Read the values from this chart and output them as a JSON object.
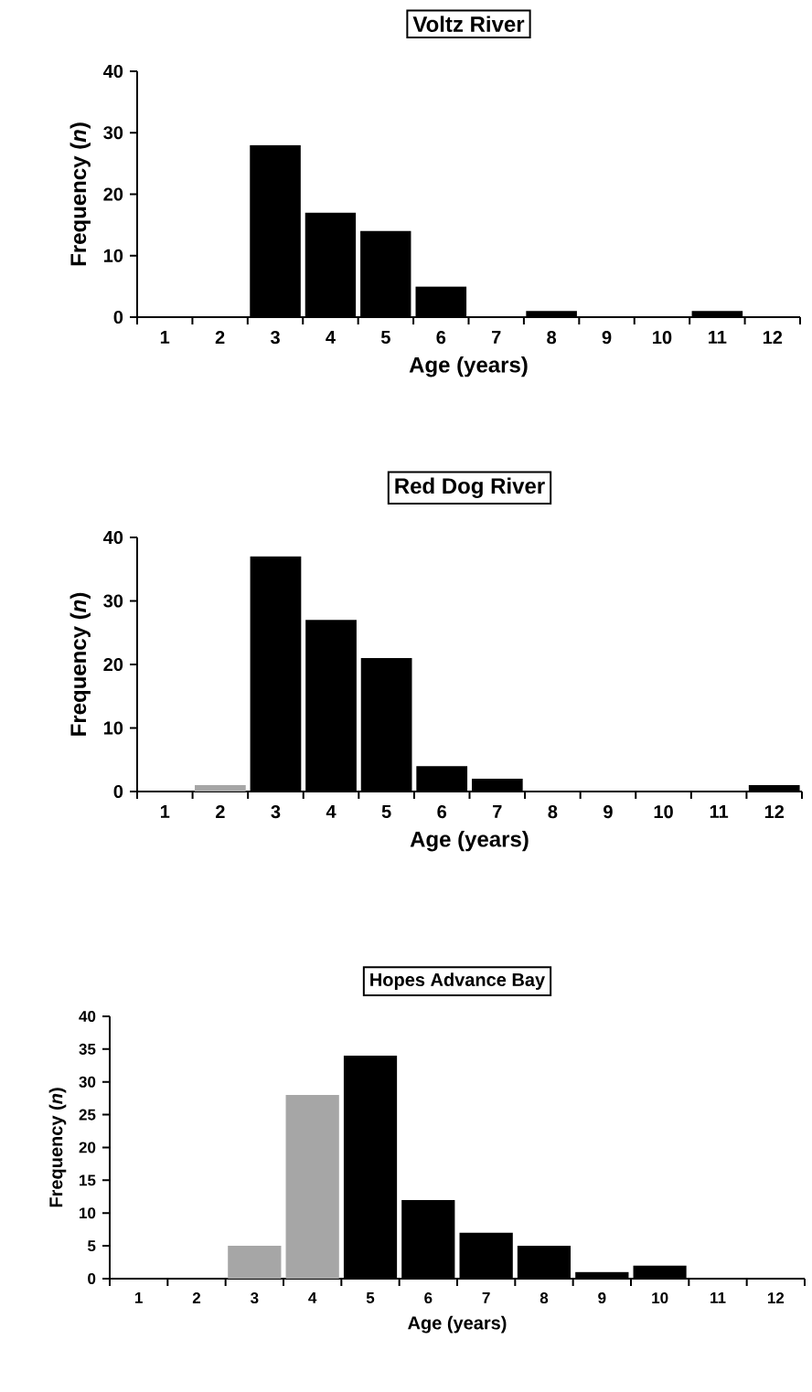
{
  "chart_data": [
    {
      "type": "bar",
      "title": "Voltz River",
      "xlabel": "Age (years)",
      "ylabel": "Frequency (*n*)",
      "categories": [
        "1",
        "2",
        "3",
        "4",
        "5",
        "6",
        "7",
        "8",
        "9",
        "10",
        "11",
        "12"
      ],
      "values": [
        0,
        0,
        28,
        17,
        14,
        5,
        0,
        1,
        0,
        0,
        1,
        0
      ],
      "colors": [
        "#000000",
        "#000000",
        "#000000",
        "#000000",
        "#000000",
        "#000000",
        "#000000",
        "#000000",
        "#000000",
        "#000000",
        "#000000",
        "#000000"
      ],
      "ylim": [
        0,
        40
      ],
      "yticks": [
        0,
        10,
        20,
        30,
        40
      ]
    },
    {
      "type": "bar",
      "title": "Red Dog River",
      "xlabel": "Age (years)",
      "ylabel": "Frequency (*n*)",
      "categories": [
        "1",
        "2",
        "3",
        "4",
        "5",
        "6",
        "7",
        "8",
        "9",
        "10",
        "11",
        "12"
      ],
      "values": [
        0,
        1,
        37,
        27,
        21,
        4,
        2,
        0,
        0,
        0,
        0,
        1
      ],
      "colors": [
        "#000000",
        "#a6a6a6",
        "#000000",
        "#000000",
        "#000000",
        "#000000",
        "#000000",
        "#000000",
        "#000000",
        "#000000",
        "#000000",
        "#000000"
      ],
      "ylim": [
        0,
        40
      ],
      "yticks": [
        0,
        10,
        20,
        30,
        40
      ]
    },
    {
      "type": "bar",
      "title": "Hopes Advance Bay",
      "xlabel": "Age (years)",
      "ylabel": "Frequency (*n*)",
      "categories": [
        "1",
        "2",
        "3",
        "4",
        "5",
        "6",
        "7",
        "8",
        "9",
        "10",
        "11",
        "12"
      ],
      "values": [
        0,
        0,
        5,
        28,
        34,
        12,
        7,
        5,
        1,
        2,
        0,
        0
      ],
      "colors": [
        "#000000",
        "#000000",
        "#a6a6a6",
        "#a6a6a6",
        "#000000",
        "#000000",
        "#000000",
        "#000000",
        "#000000",
        "#000000",
        "#000000",
        "#000000"
      ],
      "ylim": [
        0,
        40
      ],
      "yticks": [
        0,
        5,
        10,
        15,
        20,
        25,
        30,
        35,
        40
      ]
    }
  ]
}
